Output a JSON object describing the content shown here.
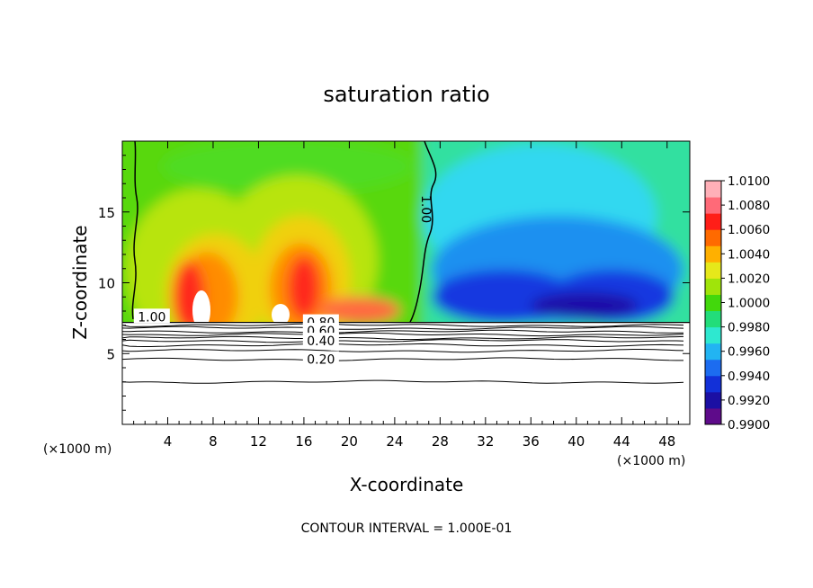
{
  "chart_data": {
    "type": "heatmap",
    "title": "saturation ratio",
    "xlabel": "X-coordinate",
    "ylabel": "Z-coordinate",
    "x_unit": "(×1000 m)",
    "y_unit": "(×1000 m)",
    "xlim": [
      0,
      50
    ],
    "ylim": [
      0,
      20
    ],
    "x_ticks": [
      "4",
      "8",
      "12",
      "16",
      "20",
      "24",
      "28",
      "32",
      "36",
      "40",
      "44",
      "48"
    ],
    "y_ticks": [
      "5",
      "10",
      "15"
    ],
    "footer": "CONTOUR INTERVAL = 1.000E-01",
    "colorbar": {
      "min": 0.99,
      "max": 1.01,
      "levels": [
        "1.0100",
        "1.0080",
        "1.0060",
        "1.0040",
        "1.0020",
        "1.0000",
        "0.9980",
        "0.9960",
        "0.9940",
        "0.9920",
        "0.9900"
      ],
      "colors": [
        "#5e0b8a",
        "#1b0fa3",
        "#1230d8",
        "#1c6cf0",
        "#22b4f2",
        "#2ee8d0",
        "#22dd7a",
        "#42d80c",
        "#a0e40a",
        "#e6e81a",
        "#ffb000",
        "#ff6a00",
        "#ff1e18",
        "#ff6a78",
        "#ffb0b8"
      ]
    },
    "contour_labels": [
      {
        "text": "1.00",
        "x": 26.8,
        "z": 15.2
      },
      {
        "text": "1.00",
        "x": 2.6,
        "z": 7.6
      },
      {
        "text": "0.80",
        "x": 17.5,
        "z": 7.2
      },
      {
        "text": "0.60",
        "x": 17.5,
        "z": 6.6
      },
      {
        "text": "0.40",
        "x": 17.5,
        "z": 5.9
      },
      {
        "text": "0.20",
        "x": 17.5,
        "z": 4.6
      }
    ],
    "cloud_base_z": 7.2,
    "subcloud_contours_z": [
      7.0,
      6.8,
      6.55,
      6.35,
      6.1,
      5.9,
      5.6,
      5.2,
      4.6,
      3.0
    ]
  }
}
